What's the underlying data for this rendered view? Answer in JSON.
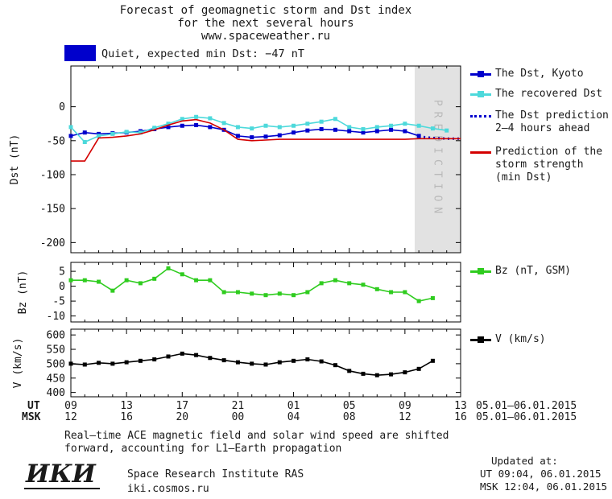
{
  "header": {
    "title_line1": "Forecast of geomagnetic storm and Dst index",
    "title_line2": "for the next several hours",
    "title_line3": "www.spaceweather.ru",
    "status_text": "Quiet, expected min Dst: −47 nT",
    "status_color": "#0000cc"
  },
  "legend": {
    "entries": [
      {
        "label": "The Dst, Kyoto",
        "color": "#0000cc",
        "style": "square"
      },
      {
        "label": "The recovered Dst",
        "color": "#4dd9db",
        "style": "square"
      },
      {
        "label": "The Dst prediction\n2–4 hours ahead",
        "color": "#0000cc",
        "style": "dotted"
      },
      {
        "label": "Prediction of the\nstorm strength\n(min Dst)",
        "color": "#d40000",
        "style": "line"
      },
      {
        "label": "Bz (nT, GSM)",
        "color": "#2fcc1f",
        "style": "square"
      },
      {
        "label": "V (km/s)",
        "color": "#000000",
        "style": "square"
      }
    ]
  },
  "xaxis": {
    "ut_label": "UT",
    "msk_label": "MSK",
    "ut_ticks": [
      "09",
      "13",
      "17",
      "21",
      "01",
      "05",
      "09",
      "13"
    ],
    "msk_ticks": [
      "12",
      "16",
      "20",
      "00",
      "04",
      "08",
      "12",
      "16"
    ],
    "ut_date": "05.01–06.01.2015",
    "msk_date": "05.01–06.01.2015"
  },
  "footer": {
    "note_line1": "Real–time ACE magnetic field and solar wind speed are shifted",
    "note_line2": "forward, accounting for L1–Earth propagation",
    "logo": "ИКИ",
    "institute": "Space Research Institute RAS",
    "site": "iki.cosmos.ru",
    "updated_label": "Updated at:",
    "updated_ut": "UT  09:04, 06.01.2015",
    "updated_msk": "MSK 12:04, 06.01.2015"
  },
  "chart_data": [
    {
      "type": "line",
      "title": "Dst index and forecast",
      "ylabel": "Dst (nT)",
      "xlim": [
        0,
        28
      ],
      "ylim": [
        -215,
        60
      ],
      "xticks": [
        0,
        4,
        8,
        12,
        16,
        20,
        24,
        28
      ],
      "yticks": [
        0,
        -50,
        -100,
        -150,
        -200
      ],
      "x_hours_ut": [
        "09",
        "13",
        "17",
        "21",
        "01",
        "05",
        "09",
        "13"
      ],
      "band": {
        "x0": 24.7,
        "x1": 28,
        "label": "PREDICTION",
        "color": "#e2e2e2",
        "label_color": "#b9b9b9"
      },
      "series": [
        {
          "name": "The Dst, Kyoto",
          "color": "#0000cc",
          "marker": "square",
          "x": [
            0,
            1,
            2,
            3,
            4,
            5,
            6,
            7,
            8,
            9,
            10,
            11,
            12,
            13,
            14,
            15,
            16,
            17,
            18,
            19,
            20,
            21,
            22,
            23,
            24,
            25
          ],
          "values": [
            -43,
            -38,
            -40,
            -39,
            -38,
            -36,
            -33,
            -30,
            -28,
            -27,
            -30,
            -34,
            -43,
            -45,
            -44,
            -42,
            -38,
            -35,
            -33,
            -34,
            -36,
            -38,
            -36,
            -34,
            -36,
            -43
          ]
        },
        {
          "name": "The recovered Dst",
          "color": "#4dd9db",
          "marker": "square",
          "x": [
            0,
            1,
            2,
            3,
            4,
            5,
            6,
            7,
            8,
            9,
            10,
            11,
            12,
            13,
            14,
            15,
            16,
            17,
            18,
            19,
            20,
            21,
            22,
            23,
            24,
            25,
            26,
            27
          ],
          "values": [
            -30,
            -52,
            -43,
            -40,
            -37,
            -38,
            -31,
            -25,
            -18,
            -15,
            -17,
            -24,
            -30,
            -32,
            -28,
            -30,
            -28,
            -25,
            -22,
            -18,
            -30,
            -33,
            -30,
            -28,
            -25,
            -28,
            -32,
            -35
          ]
        },
        {
          "name": "The Dst prediction 2–4 hours ahead",
          "color": "#0000cc",
          "style": "dotted",
          "x": [
            25,
            26,
            27,
            28
          ],
          "values": [
            -44,
            -46,
            -47,
            -47
          ]
        },
        {
          "name": "Prediction of the storm strength (min Dst)",
          "color": "#d40000",
          "x": [
            0,
            1,
            2,
            3,
            4,
            5,
            6,
            7,
            8,
            9,
            10,
            11,
            12,
            13,
            14,
            15,
            16,
            17,
            18,
            19,
            20,
            21,
            22,
            23,
            24,
            25,
            26,
            27,
            28
          ],
          "values": [
            -80,
            -80,
            -46,
            -45,
            -43,
            -40,
            -34,
            -27,
            -21,
            -19,
            -24,
            -34,
            -48,
            -50,
            -49,
            -48,
            -48,
            -48,
            -48,
            -48,
            -48,
            -48,
            -48,
            -48,
            -48,
            -47,
            -47,
            -47,
            -47
          ]
        }
      ]
    },
    {
      "type": "line",
      "title": "IMF Bz",
      "ylabel": "Bz (nT)",
      "xlim": [
        0,
        28
      ],
      "ylim": [
        -12,
        8
      ],
      "xticks": [
        0,
        4,
        8,
        12,
        16,
        20,
        24,
        28
      ],
      "yticks": [
        5,
        0,
        -5,
        -10
      ],
      "series": [
        {
          "name": "Bz (nT, GSM)",
          "color": "#2fcc1f",
          "marker": "square",
          "x": [
            0,
            1,
            2,
            3,
            4,
            5,
            6,
            7,
            8,
            9,
            10,
            11,
            12,
            13,
            14,
            15,
            16,
            17,
            18,
            19,
            20,
            21,
            22,
            23,
            24,
            25,
            26
          ],
          "values": [
            2,
            2,
            1.5,
            -1.5,
            2,
            1,
            2.5,
            6,
            4,
            2,
            2,
            -2,
            -2,
            -2.5,
            -3,
            -2.5,
            -3,
            -2,
            1,
            2,
            1,
            0.5,
            -1,
            -2,
            -2,
            -5,
            -4
          ]
        }
      ]
    },
    {
      "type": "line",
      "title": "Solar wind speed",
      "ylabel": "V (km/s)",
      "xlim": [
        0,
        28
      ],
      "ylim": [
        385,
        620
      ],
      "xticks": [
        0,
        4,
        8,
        12,
        16,
        20,
        24,
        28
      ],
      "yticks": [
        600,
        550,
        500,
        450,
        400
      ],
      "series": [
        {
          "name": "V (km/s)",
          "color": "#000000",
          "marker": "square",
          "x": [
            0,
            1,
            2,
            3,
            4,
            5,
            6,
            7,
            8,
            9,
            10,
            11,
            12,
            13,
            14,
            15,
            16,
            17,
            18,
            19,
            20,
            21,
            22,
            23,
            24,
            25,
            26
          ],
          "values": [
            500,
            497,
            503,
            500,
            505,
            510,
            515,
            525,
            535,
            530,
            520,
            512,
            505,
            500,
            497,
            505,
            510,
            515,
            508,
            495,
            475,
            465,
            460,
            463,
            470,
            482,
            510
          ]
        }
      ]
    }
  ]
}
